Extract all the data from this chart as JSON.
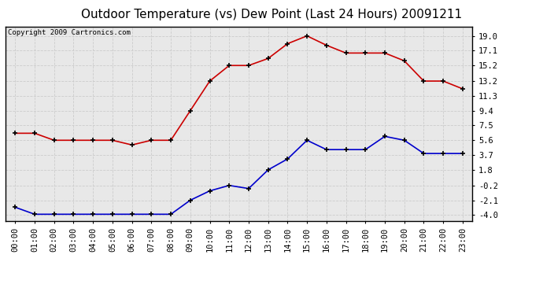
{
  "title": "Outdoor Temperature (vs) Dew Point (Last 24 Hours) 20091211",
  "copyright": "Copyright 2009 Cartronics.com",
  "x_labels": [
    "00:00",
    "01:00",
    "02:00",
    "03:00",
    "04:00",
    "05:00",
    "06:00",
    "07:00",
    "08:00",
    "09:00",
    "10:00",
    "11:00",
    "12:00",
    "13:00",
    "14:00",
    "15:00",
    "16:00",
    "17:00",
    "18:00",
    "19:00",
    "20:00",
    "21:00",
    "22:00",
    "23:00"
  ],
  "temp_data": [
    6.5,
    6.5,
    5.6,
    5.6,
    5.6,
    5.6,
    5.0,
    5.6,
    5.6,
    9.4,
    13.2,
    15.2,
    15.2,
    16.1,
    18.0,
    19.0,
    17.8,
    16.8,
    16.8,
    16.8,
    15.8,
    13.2,
    13.2,
    12.2
  ],
  "dew_data": [
    -3.0,
    -3.9,
    -3.9,
    -3.9,
    -3.9,
    -3.9,
    -3.9,
    -3.9,
    -3.9,
    -2.1,
    -0.9,
    -0.2,
    -0.6,
    1.8,
    3.2,
    5.6,
    4.4,
    4.4,
    4.4,
    6.1,
    5.6,
    3.9,
    3.9,
    3.9
  ],
  "temp_color": "#cc0000",
  "dew_color": "#0000cc",
  "marker_color": "#000000",
  "bg_color": "#ffffff",
  "plot_bg_color": "#e8e8e8",
  "grid_color": "#cccccc",
  "yticks": [
    19.0,
    17.1,
    15.2,
    13.2,
    11.3,
    9.4,
    7.5,
    5.6,
    3.7,
    1.8,
    -0.2,
    -2.1,
    -4.0
  ],
  "ylim_min": -4.8,
  "ylim_max": 20.2,
  "title_fontsize": 11,
  "copyright_fontsize": 6.5,
  "tick_fontsize": 7.5
}
